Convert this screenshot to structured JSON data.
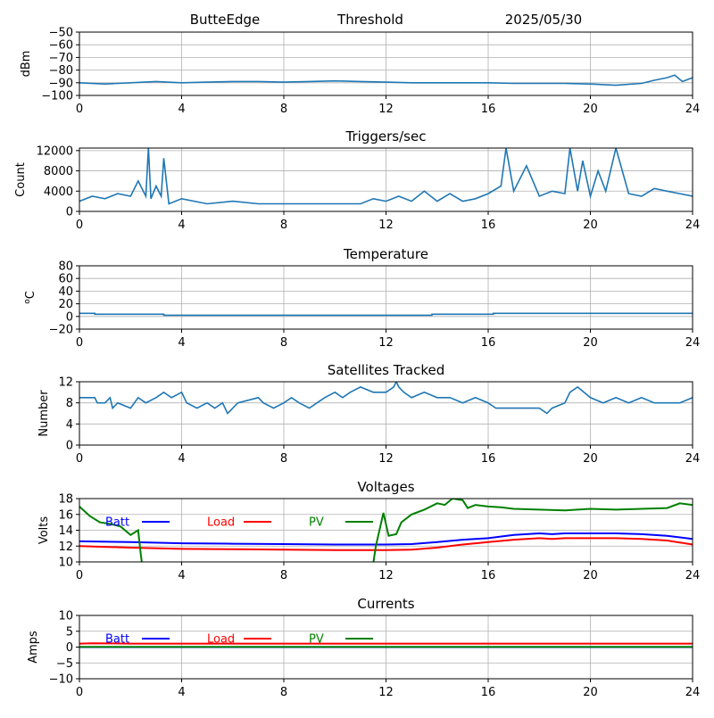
{
  "header": {
    "station": "ButteEdge",
    "mode": "Threshold",
    "date": "2025/05/30"
  },
  "colors": {
    "series": "#1f77b4",
    "batt": "#0000ff",
    "load": "#ff0000",
    "pv": "#008000",
    "grid": "#b0b0b0"
  },
  "chart_data": [
    {
      "type": "line",
      "title": "",
      "ylabel": "dBm",
      "xlim": [
        0,
        24
      ],
      "ylim": [
        -100,
        -50
      ],
      "xticks": [
        0,
        4,
        8,
        12,
        16,
        20,
        24
      ],
      "yticks": [
        -100,
        -90,
        -80,
        -70,
        -60,
        -50
      ],
      "ytick_labels": [
        "−100",
        "−90",
        "−80",
        "−70",
        "−60",
        "−50"
      ],
      "grid": true,
      "series": [
        {
          "x": [
            0,
            1,
            2,
            3,
            4,
            5,
            6,
            7,
            8,
            9,
            10,
            11,
            12,
            13,
            14,
            15,
            16,
            17,
            18,
            19,
            20,
            21,
            22,
            22.5,
            23,
            23.3,
            23.6,
            24
          ],
          "y": [
            -90,
            -91,
            -90,
            -89,
            -90,
            -89.5,
            -89,
            -89,
            -89.5,
            -89,
            -88.5,
            -89,
            -89.5,
            -90,
            -90,
            -90,
            -90,
            -90.5,
            -90.5,
            -90.5,
            -91,
            -92,
            -90.5,
            -88,
            -86,
            -84,
            -89,
            -86
          ]
        }
      ]
    },
    {
      "type": "line",
      "title": "Triggers/sec",
      "ylabel": "Count",
      "xlim": [
        0,
        24
      ],
      "ylim": [
        0,
        12500
      ],
      "xticks": [
        0,
        4,
        8,
        12,
        16,
        20,
        24
      ],
      "yticks": [
        0,
        4000,
        8000,
        12000
      ],
      "ytick_labels": [
        "0",
        "4000",
        "8000",
        "12000"
      ],
      "grid": true,
      "series": [
        {
          "x": [
            0,
            0.5,
            1,
            1.5,
            2,
            2.3,
            2.6,
            2.7,
            2.8,
            3,
            3.2,
            3.3,
            3.5,
            4,
            5,
            6,
            7,
            8,
            9,
            10,
            11,
            11.5,
            12,
            12.5,
            13,
            13.5,
            14,
            14.5,
            15,
            15.5,
            16,
            16.5,
            16.7,
            17,
            17.5,
            18,
            18.5,
            19,
            19.2,
            19.5,
            19.7,
            20,
            20.3,
            20.6,
            21,
            21.5,
            22,
            22.5,
            23,
            23.5,
            24
          ],
          "y": [
            2000,
            3000,
            2500,
            3500,
            3000,
            6000,
            3000,
            12500,
            2500,
            5000,
            3000,
            10500,
            1500,
            2500,
            1500,
            2000,
            1500,
            1500,
            1500,
            1500,
            1500,
            2500,
            2000,
            3000,
            2000,
            4000,
            2000,
            3500,
            2000,
            2500,
            3500,
            5000,
            12500,
            4000,
            9000,
            3000,
            4000,
            3500,
            12500,
            4000,
            10000,
            3000,
            8000,
            4000,
            12500,
            3500,
            3000,
            4500,
            4000,
            3500,
            3000
          ]
        }
      ]
    },
    {
      "type": "line",
      "title": "Temperature",
      "ylabel": "oC",
      "xlim": [
        0,
        24
      ],
      "ylim": [
        -20,
        80
      ],
      "xticks": [
        0,
        4,
        8,
        12,
        16,
        20,
        24
      ],
      "yticks": [
        -20,
        0,
        20,
        40,
        60,
        80
      ],
      "ytick_labels": [
        "−20",
        "0",
        "20",
        "40",
        "60",
        "80"
      ],
      "grid": true,
      "series": [
        {
          "x": [
            0,
            0.6,
            0.6,
            3.3,
            3.3,
            13.8,
            13.8,
            16.2,
            16.2,
            24
          ],
          "y": [
            5,
            5,
            3.5,
            3.5,
            2,
            2,
            3.5,
            3.5,
            5,
            5
          ]
        }
      ]
    },
    {
      "type": "line",
      "title": "Satellites Tracked",
      "ylabel": "Number",
      "xlim": [
        0,
        24
      ],
      "ylim": [
        0,
        12
      ],
      "xticks": [
        0,
        4,
        8,
        12,
        16,
        20,
        24
      ],
      "yticks": [
        0,
        4,
        8,
        12
      ],
      "ytick_labels": [
        "0",
        "4",
        "8",
        "12"
      ],
      "grid": true,
      "series": [
        {
          "x": [
            0,
            0.6,
            0.7,
            1.0,
            1.2,
            1.3,
            1.5,
            2.0,
            2.3,
            2.6,
            3.0,
            3.3,
            3.6,
            4.0,
            4.2,
            4.6,
            5.0,
            5.3,
            5.6,
            5.8,
            6.2,
            7.0,
            7.2,
            7.6,
            8.0,
            8.3,
            8.6,
            9.0,
            9.3,
            9.6,
            10.0,
            10.3,
            10.6,
            11.0,
            11.5,
            12.0,
            12.3,
            12.4,
            12.5,
            12.7,
            13.0,
            13.5,
            14.0,
            14.5,
            15.0,
            15.5,
            16.0,
            16.3,
            16.5,
            17.0,
            17.5,
            18.0,
            18.3,
            18.5,
            19.0,
            19.2,
            19.5,
            20.0,
            20.5,
            21.0,
            21.5,
            22.0,
            22.5,
            23.0,
            23.5,
            24.0
          ],
          "y": [
            9,
            9,
            8,
            8,
            9,
            7,
            8,
            7,
            9,
            8,
            9,
            10,
            9,
            10,
            8,
            7,
            8,
            7,
            8,
            6,
            8,
            9,
            8,
            7,
            8,
            9,
            8,
            7,
            8,
            9,
            10,
            9,
            10,
            11,
            10,
            10,
            11,
            12,
            11,
            10,
            9,
            10,
            9,
            9,
            8,
            9,
            8,
            7,
            7,
            7,
            7,
            7,
            6,
            7,
            8,
            10,
            11,
            9,
            8,
            9,
            8,
            9,
            8,
            8,
            8,
            9
          ]
        }
      ]
    },
    {
      "type": "line",
      "title": "Voltages",
      "ylabel": "Volts",
      "xlim": [
        0,
        24
      ],
      "ylim": [
        10,
        18
      ],
      "xticks": [
        0,
        4,
        8,
        12,
        16,
        20,
        24
      ],
      "yticks": [
        10,
        12,
        14,
        16,
        18
      ],
      "ytick_labels": [
        "10",
        "12",
        "14",
        "16",
        "18"
      ],
      "grid": true,
      "legend": [
        "Batt",
        "Load",
        "PV"
      ],
      "series": [
        {
          "name": "Batt",
          "x": [
            0,
            2,
            4,
            6,
            8,
            10,
            12,
            13,
            14,
            15,
            16,
            17,
            18,
            18.5,
            19,
            20,
            21,
            22,
            23,
            24
          ],
          "y": [
            12.6,
            12.5,
            12.35,
            12.3,
            12.25,
            12.2,
            12.2,
            12.25,
            12.5,
            12.8,
            13.0,
            13.4,
            13.6,
            13.5,
            13.6,
            13.6,
            13.6,
            13.5,
            13.3,
            12.9
          ]
        },
        {
          "name": "Load",
          "x": [
            0,
            2,
            4,
            6,
            8,
            10,
            12,
            13,
            14,
            15,
            16,
            17,
            18,
            18.5,
            19,
            20,
            21,
            22,
            23,
            24
          ],
          "y": [
            12.0,
            11.8,
            11.65,
            11.6,
            11.55,
            11.5,
            11.5,
            11.55,
            11.8,
            12.2,
            12.5,
            12.8,
            13.0,
            12.9,
            13.0,
            13.0,
            13.0,
            12.9,
            12.7,
            12.2
          ]
        },
        {
          "name": "PV",
          "x": [
            0,
            0.4,
            0.8,
            1.2,
            1.6,
            2.0,
            2.3,
            2.4,
            2.45,
            11.5,
            11.6,
            11.9,
            12.1,
            12.4,
            12.6,
            13.0,
            13.5,
            14.0,
            14.3,
            14.6,
            15.0,
            15.2,
            15.5,
            16.0,
            16.5,
            17.0,
            18.0,
            19.0,
            20.0,
            21.0,
            22.0,
            23.0,
            23.5,
            24.0
          ],
          "y": [
            17.0,
            15.8,
            15.0,
            14.8,
            14.5,
            13.4,
            14.0,
            11.0,
            9.8,
            9.8,
            12.0,
            16.2,
            13.3,
            13.5,
            15.0,
            16.0,
            16.6,
            17.4,
            17.2,
            18.0,
            17.8,
            16.8,
            17.2,
            17.0,
            16.9,
            16.7,
            16.6,
            16.5,
            16.7,
            16.6,
            16.7,
            16.8,
            17.4,
            17.2
          ]
        }
      ]
    },
    {
      "type": "line",
      "title": "Currents",
      "ylabel": "Amps",
      "xlim": [
        0,
        24
      ],
      "ylim": [
        -10,
        10
      ],
      "xticks": [
        0,
        4,
        8,
        12,
        16,
        20,
        24
      ],
      "yticks": [
        -10,
        -5,
        0,
        5,
        10
      ],
      "ytick_labels": [
        "−10",
        "−5",
        "0",
        "5",
        "10"
      ],
      "grid": true,
      "legend": [
        "Batt",
        "Load",
        "PV"
      ],
      "series": [
        {
          "name": "Batt",
          "x": [
            0,
            24
          ],
          "y": [
            0.0,
            0.0
          ]
        },
        {
          "name": "Load",
          "x": [
            0,
            0.5,
            2,
            24
          ],
          "y": [
            1.1,
            1.2,
            1.1,
            1.1
          ]
        },
        {
          "name": "PV",
          "x": [
            0,
            24
          ],
          "y": [
            0.05,
            0.05
          ]
        }
      ]
    }
  ]
}
